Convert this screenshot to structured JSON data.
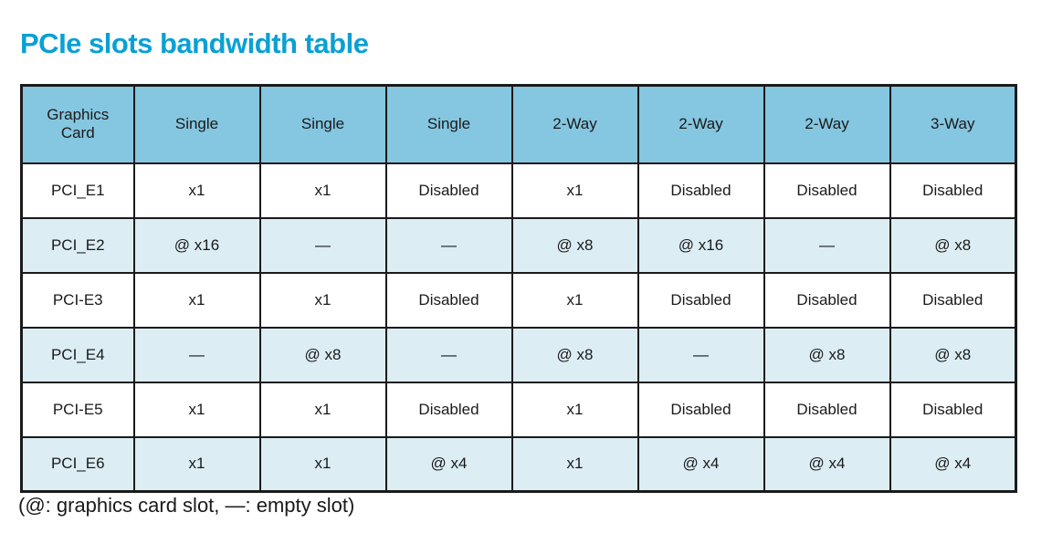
{
  "page": {
    "title": "PCIe slots bandwidth table",
    "footnote": "(@: graphics card slot, —: empty slot)",
    "accent_color": "#0aa0d4",
    "header_fill_color": "#85c6e0",
    "alt_row_fill_color": "#dcedf4",
    "border_color": "#1a1a1a"
  },
  "table": {
    "headers": [
      "Graphics Card",
      "Single",
      "Single",
      "Single",
      "2-Way",
      "2-Way",
      "2-Way",
      "3-Way"
    ],
    "rows": [
      {
        "label": "PCI_E1",
        "cells": [
          "x1",
          "x1",
          "Disabled",
          "x1",
          "Disabled",
          "Disabled",
          "Disabled"
        ]
      },
      {
        "label": "PCI_E2",
        "cells": [
          "@ x16",
          "—",
          "—",
          "@ x8",
          "@ x16",
          "—",
          "@ x8"
        ]
      },
      {
        "label": "PCI-E3",
        "cells": [
          "x1",
          "x1",
          "Disabled",
          "x1",
          "Disabled",
          "Disabled",
          "Disabled"
        ]
      },
      {
        "label": "PCI_E4",
        "cells": [
          "—",
          "@ x8",
          "—",
          "@ x8",
          "—",
          "@ x8",
          "@ x8"
        ]
      },
      {
        "label": "PCI-E5",
        "cells": [
          "x1",
          "x1",
          "Disabled",
          "x1",
          "Disabled",
          "Disabled",
          "Disabled"
        ]
      },
      {
        "label": "PCI_E6",
        "cells": [
          "x1",
          "x1",
          "@ x4",
          "x1",
          "@ x4",
          "@ x4",
          "@ x4"
        ]
      }
    ]
  }
}
